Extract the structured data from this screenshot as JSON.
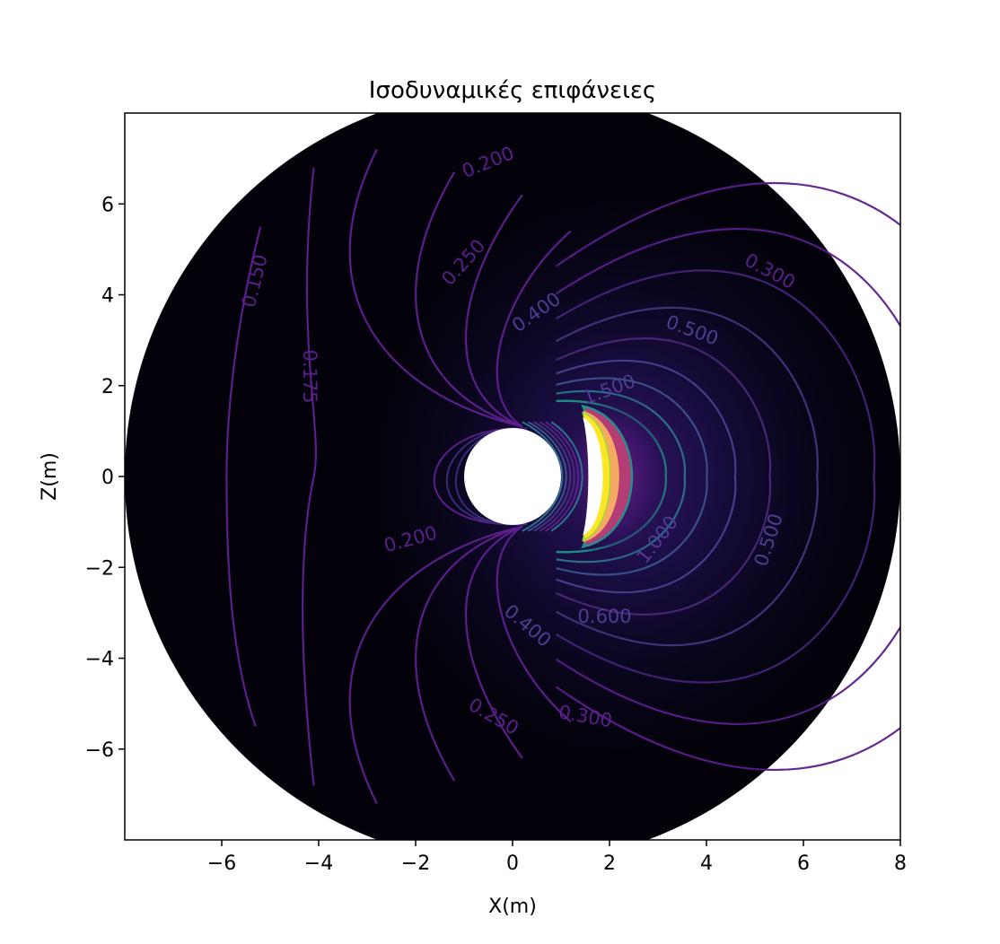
{
  "chart_data": {
    "type": "contour",
    "title": "Ισοδυναμικές επιφάνειες",
    "xlabel": "X(m)",
    "ylabel": "Z(m)",
    "xlim": [
      -8,
      8
    ],
    "ylim": [
      -8,
      8
    ],
    "xticks": [
      {
        "value": -6,
        "label": "−6"
      },
      {
        "value": -4,
        "label": "−4"
      },
      {
        "value": -2,
        "label": "−2"
      },
      {
        "value": 0,
        "label": "0"
      },
      {
        "value": 2,
        "label": "2"
      },
      {
        "value": 4,
        "label": "4"
      },
      {
        "value": 6,
        "label": "6"
      },
      {
        "value": 8,
        "label": "8"
      }
    ],
    "yticks": [
      {
        "value": 6,
        "label": "6"
      },
      {
        "value": 4,
        "label": "4"
      },
      {
        "value": 2,
        "label": "2"
      },
      {
        "value": 0,
        "label": "0"
      },
      {
        "value": -2,
        "label": "−2"
      },
      {
        "value": -4,
        "label": "−4"
      },
      {
        "value": -6,
        "label": "−6"
      }
    ],
    "outer_radius": 8,
    "inner_hole_center": [
      0,
      0
    ],
    "inner_hole_radius": 1,
    "colormap": "inferno",
    "contour_colormap": "viridis",
    "contour_labels": [
      {
        "text": "0.150",
        "x": -5.3,
        "z": 4.3,
        "angle": -76
      },
      {
        "text": "0.175",
        "x": -4.2,
        "z": 2.2,
        "angle": 90
      },
      {
        "text": "0.200",
        "x": -0.5,
        "z": 6.9,
        "angle": -22
      },
      {
        "text": "0.250",
        "x": -1.0,
        "z": 4.7,
        "angle": -48
      },
      {
        "text": "0.300",
        "x": 5.3,
        "z": 4.5,
        "angle": 28
      },
      {
        "text": "0.400",
        "x": 0.5,
        "z": 3.6,
        "angle": -35
      },
      {
        "text": "0.500",
        "x": 3.7,
        "z": 3.2,
        "angle": 20
      },
      {
        "text": "0.500",
        "x": 5.3,
        "z": -1.4,
        "angle": -72
      },
      {
        "text": "0.200",
        "x": -2.1,
        "z": -1.4,
        "angle": -15
      },
      {
        "text": "1.000",
        "x": 3.0,
        "z": -1.4,
        "angle": -52
      },
      {
        "text": "0.600",
        "x": 1.9,
        "z": -3.1,
        "angle": 0
      },
      {
        "text": "0.400",
        "x": 0.3,
        "z": -3.3,
        "angle": 40
      },
      {
        "text": "0.300",
        "x": 1.5,
        "z": -5.3,
        "angle": 10
      },
      {
        "text": "0.250",
        "x": -0.4,
        "z": -5.3,
        "angle": 30
      },
      {
        "text": "1.500",
        "x": 2.0,
        "z": 1.9,
        "angle": -20
      }
    ],
    "colors": {
      "background_outer": "#03020b",
      "background_inner": "#100a2c",
      "crescent_core": "#ffffff",
      "crescent_yellow": "#fde725",
      "crescent_orange": "#f5a962",
      "crescent_magenta": "#b43d76",
      "contour_low": "#5b1e8a",
      "contour_mid": "#4a3f8f",
      "contour_teal": "#21918c"
    }
  }
}
